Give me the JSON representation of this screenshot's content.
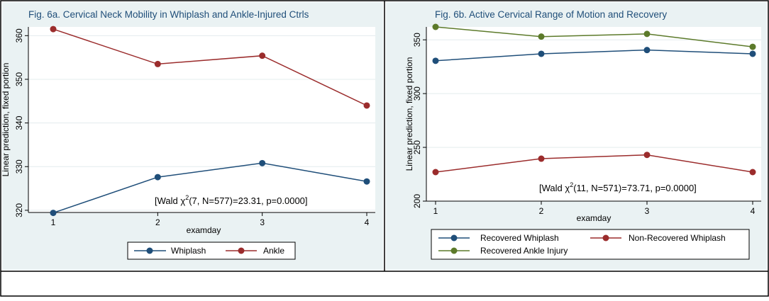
{
  "colors": {
    "whiplash": "#1f4e79",
    "ankle": "#9b2c2c",
    "green": "#5c7a2a",
    "plot_bg": "#eaf2f3",
    "border": "#000000"
  },
  "chart_data": [
    {
      "type": "line",
      "title": "Fig. 6a. Cervical Neck Mobility in Whiplash and Ankle-Injured Ctrls",
      "xlabel": "examday",
      "ylabel": "Linear prediction, fixed portion",
      "x": [
        1,
        2,
        3,
        4
      ],
      "xticks": [
        "1",
        "2",
        "3",
        "4"
      ],
      "yticks": [
        "320",
        "330",
        "340",
        "350",
        "360"
      ],
      "ylim": [
        319.5,
        362
      ],
      "grid": true,
      "legend_position": "bottom",
      "annotation": {
        "prefix": "[Wald χ",
        "sup": "2",
        "suffix": "(7, N=577)=23.31, p=0.0000]"
      },
      "series": [
        {
          "name": "Whiplash",
          "color_key": "whiplash",
          "values": [
            319.4,
            327.6,
            330.8,
            326.6
          ]
        },
        {
          "name": "Ankle",
          "color_key": "ankle",
          "values": [
            361.5,
            353.5,
            355.4,
            344.0
          ]
        }
      ]
    },
    {
      "type": "line",
      "title": "Fig. 6b. Active Cervical Range of Motion and Recovery",
      "xlabel": "examday",
      "ylabel": "Linear prediction, fixed portion",
      "x": [
        1,
        2,
        3,
        4
      ],
      "xticks": [
        "1",
        "2",
        "3",
        "4"
      ],
      "yticks": [
        "200",
        "250",
        "300",
        "350"
      ],
      "ylim": [
        200,
        362
      ],
      "grid": true,
      "legend_position": "bottom",
      "annotation": {
        "prefix": "[Wald χ",
        "sup": "2",
        "suffix": "(11, N=571)=73.71, p=0.0000]"
      },
      "series": [
        {
          "name": "Recovered Whiplash",
          "color_key": "whiplash",
          "values": [
            330.5,
            337.0,
            340.5,
            337.0
          ]
        },
        {
          "name": "Non-Recovered Whiplash",
          "color_key": "ankle",
          "values": [
            227.0,
            239.5,
            243.0,
            227.0
          ]
        },
        {
          "name": "Recovered Ankle Injury",
          "color_key": "green",
          "values": [
            362.0,
            353.0,
            355.5,
            343.5
          ]
        }
      ]
    }
  ]
}
